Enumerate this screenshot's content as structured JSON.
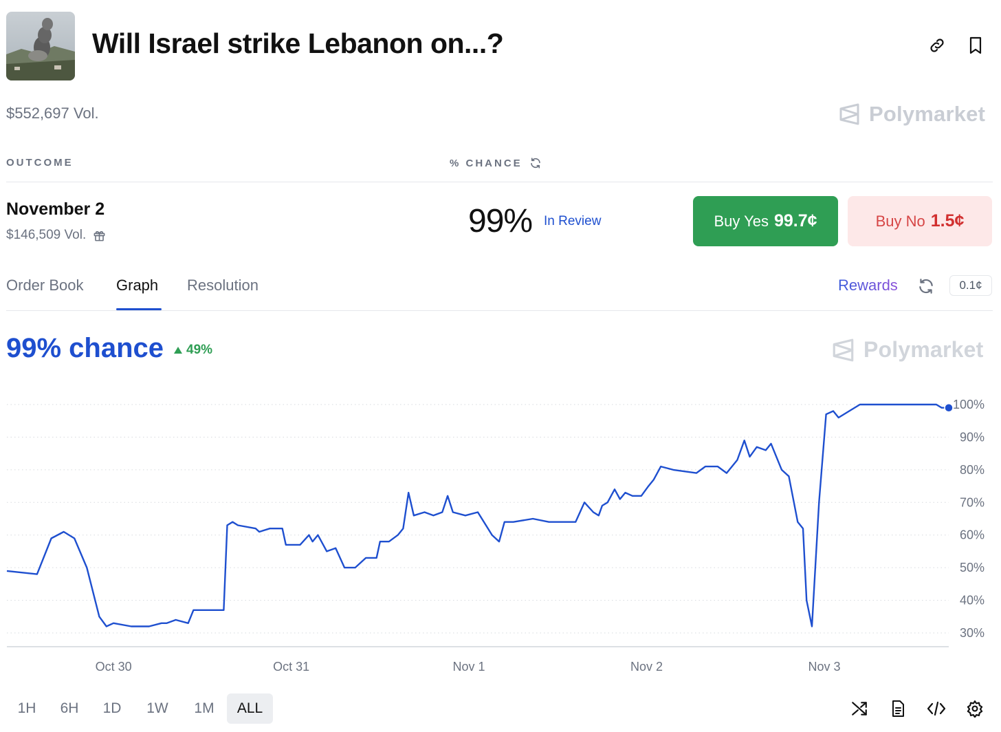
{
  "market": {
    "title": "Will Israel strike Lebanon on...?",
    "volume": "$552,697 Vol.",
    "brand": "Polymarket"
  },
  "table": {
    "outcome_header": "OUTCOME",
    "chance_header": "% CHANCE"
  },
  "outcome": {
    "name": "November 2",
    "volume": "$146,509 Vol.",
    "percent": "99%",
    "status": "In Review",
    "buy_yes_label": "Buy Yes",
    "buy_yes_price": "99.7¢",
    "buy_no_label": "Buy No",
    "buy_no_price": "1.5¢"
  },
  "tabs": [
    {
      "label": "Order Book"
    },
    {
      "label": "Graph",
      "active": true
    },
    {
      "label": "Resolution"
    }
  ],
  "rewards_label": "Rewards",
  "spread": "0.1¢",
  "chart_summary": {
    "chance": "99% chance",
    "delta": "49%"
  },
  "chart_data": {
    "type": "line",
    "title": "",
    "xlabel": "",
    "ylabel": "",
    "x_tick_labels": [
      "Oct 30",
      "Oct 31",
      "Nov 1",
      "Nov 2",
      "Nov 3"
    ],
    "y_tick_labels": [
      "100%",
      "90%",
      "80%",
      "70%",
      "60%",
      "50%",
      "40%",
      "30%"
    ],
    "ylim": [
      22,
      100
    ],
    "grid": true,
    "series": [
      {
        "color": "#1e4fcf",
        "points": [
          [
            29.4,
            49
          ],
          [
            29.57,
            48
          ],
          [
            29.65,
            59
          ],
          [
            29.72,
            61
          ],
          [
            29.78,
            59
          ],
          [
            29.85,
            50
          ],
          [
            29.92,
            35
          ],
          [
            29.96,
            32
          ],
          [
            30.0,
            33
          ],
          [
            30.1,
            32
          ],
          [
            30.2,
            32
          ],
          [
            30.27,
            33
          ],
          [
            30.3,
            33
          ],
          [
            30.35,
            34
          ],
          [
            30.42,
            33
          ],
          [
            30.45,
            37
          ],
          [
            30.62,
            37
          ],
          [
            30.64,
            63
          ],
          [
            30.67,
            64
          ],
          [
            30.7,
            63
          ],
          [
            30.8,
            62
          ],
          [
            30.82,
            61
          ],
          [
            30.88,
            62
          ],
          [
            30.95,
            62
          ],
          [
            30.97,
            57
          ],
          [
            31.05,
            57
          ],
          [
            31.1,
            60
          ],
          [
            31.12,
            58
          ],
          [
            31.15,
            60
          ],
          [
            31.2,
            55
          ],
          [
            31.25,
            56
          ],
          [
            31.3,
            50
          ],
          [
            31.36,
            50
          ],
          [
            31.42,
            53
          ],
          [
            31.48,
            53
          ],
          [
            31.5,
            58
          ],
          [
            31.55,
            58
          ],
          [
            31.6,
            60
          ],
          [
            31.63,
            62
          ],
          [
            31.66,
            73
          ],
          [
            31.69,
            66
          ],
          [
            31.75,
            67
          ],
          [
            31.8,
            66
          ],
          [
            31.85,
            67
          ],
          [
            31.88,
            72
          ],
          [
            31.91,
            67
          ],
          [
            31.98,
            66
          ],
          [
            32.05,
            67
          ],
          [
            32.13,
            60
          ],
          [
            32.17,
            58
          ],
          [
            32.2,
            64
          ],
          [
            32.25,
            64
          ],
          [
            32.36,
            65
          ],
          [
            32.45,
            64
          ],
          [
            32.6,
            64
          ],
          [
            32.65,
            70
          ],
          [
            32.7,
            67
          ],
          [
            32.73,
            66
          ],
          [
            32.75,
            69
          ],
          [
            32.78,
            70
          ],
          [
            32.82,
            74
          ],
          [
            32.85,
            71
          ],
          [
            32.88,
            73
          ],
          [
            32.92,
            72
          ],
          [
            32.97,
            72
          ],
          [
            33.01,
            75
          ],
          [
            33.04,
            77
          ],
          [
            33.08,
            81
          ],
          [
            33.15,
            80
          ],
          [
            33.28,
            79
          ],
          [
            33.33,
            81
          ],
          [
            33.4,
            81
          ],
          [
            33.45,
            79
          ],
          [
            33.51,
            83
          ],
          [
            33.55,
            89
          ],
          [
            33.58,
            84
          ],
          [
            33.62,
            87
          ],
          [
            33.67,
            86
          ],
          [
            33.7,
            88
          ],
          [
            33.76,
            80
          ],
          [
            33.8,
            78
          ],
          [
            33.85,
            64
          ],
          [
            33.88,
            62
          ],
          [
            33.9,
            40
          ],
          [
            33.93,
            32
          ],
          [
            33.97,
            70
          ],
          [
            34.01,
            97
          ],
          [
            34.05,
            98
          ],
          [
            34.08,
            96
          ],
          [
            34.14,
            98
          ],
          [
            34.2,
            100
          ],
          [
            34.4,
            100
          ],
          [
            34.63,
            100
          ],
          [
            34.66,
            99
          ],
          [
            34.7,
            99
          ]
        ]
      }
    ]
  },
  "ranges": [
    "1H",
    "6H",
    "1D",
    "1W",
    "1M",
    "ALL"
  ],
  "active_range": "ALL",
  "icons": [
    "link-icon",
    "bookmark-icon",
    "refresh-icon",
    "gift-icon",
    "shuffle-icon",
    "document-icon",
    "code-icon",
    "settings-icon"
  ]
}
